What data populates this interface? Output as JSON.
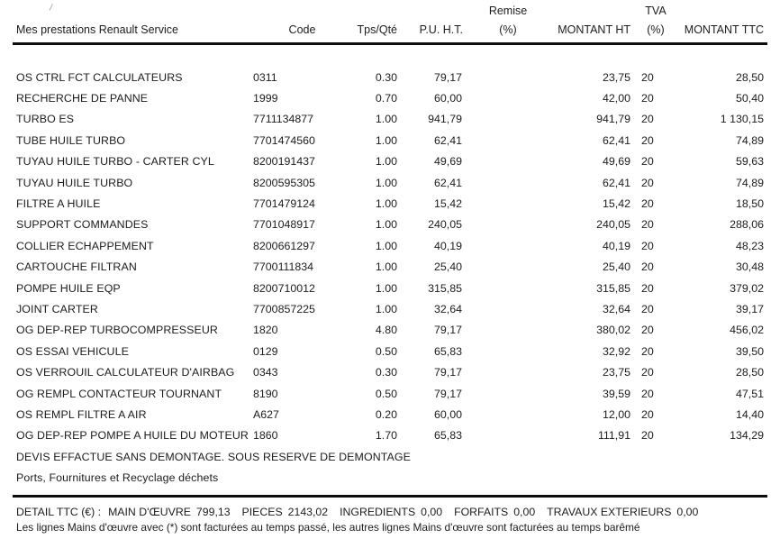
{
  "table": {
    "columns": [
      {
        "id": "prestations",
        "line1": "",
        "line2": "Mes prestations Renault Service"
      },
      {
        "id": "code",
        "line1": "",
        "line2": "Code"
      },
      {
        "id": "tps_qte",
        "line1": "",
        "line2": "Tps/Qté"
      },
      {
        "id": "pu_ht",
        "line1": "",
        "line2": "P.U. H.T."
      },
      {
        "id": "remise",
        "line1": "Remise",
        "line2": "(%)"
      },
      {
        "id": "montant_ht",
        "line1": "",
        "line2": "MONTANT HT"
      },
      {
        "id": "tva",
        "line1": "TVA",
        "line2": "(%)"
      },
      {
        "id": "montant_ttc",
        "line1": "",
        "line2": "MONTANT TTC"
      }
    ],
    "rows": [
      {
        "label": "OS CTRL FCT CALCULATEURS",
        "code": "0311",
        "qty": "0.30",
        "pu_ht": "79,17",
        "remise": "",
        "montant_ht": "23,75",
        "tva": "20",
        "montant_ttc": "28,50"
      },
      {
        "label": "RECHERCHE DE PANNE",
        "code": "1999",
        "qty": "0.70",
        "pu_ht": "60,00",
        "remise": "",
        "montant_ht": "42,00",
        "tva": "20",
        "montant_ttc": "50,40"
      },
      {
        "label": "TURBO ES",
        "code": "7711134877",
        "qty": "1.00",
        "pu_ht": "941,79",
        "remise": "",
        "montant_ht": "941,79",
        "tva": "20",
        "montant_ttc": "1 130,15"
      },
      {
        "label": "TUBE HUILE TURBO",
        "code": "7701474560",
        "qty": "1.00",
        "pu_ht": "62,41",
        "remise": "",
        "montant_ht": "62,41",
        "tva": "20",
        "montant_ttc": "74,89"
      },
      {
        "label": "TUYAU HUILE TURBO - CARTER CYL",
        "code": "8200191437",
        "qty": "1.00",
        "pu_ht": "49,69",
        "remise": "",
        "montant_ht": "49,69",
        "tva": "20",
        "montant_ttc": "59,63"
      },
      {
        "label": "TUYAU HUILE TURBO",
        "code": "8200595305",
        "qty": "1.00",
        "pu_ht": "62,41",
        "remise": "",
        "montant_ht": "62,41",
        "tva": "20",
        "montant_ttc": "74,89"
      },
      {
        "label": "FILTRE A HUILE",
        "code": "7701479124",
        "qty": "1.00",
        "pu_ht": "15,42",
        "remise": "",
        "montant_ht": "15,42",
        "tva": "20",
        "montant_ttc": "18,50"
      },
      {
        "label": "SUPPORT COMMANDES",
        "code": "7701048917",
        "qty": "1.00",
        "pu_ht": "240,05",
        "remise": "",
        "montant_ht": "240,05",
        "tva": "20",
        "montant_ttc": "288,06"
      },
      {
        "label": "COLLIER ECHAPPEMENT",
        "code": "8200661297",
        "qty": "1.00",
        "pu_ht": "40,19",
        "remise": "",
        "montant_ht": "40,19",
        "tva": "20",
        "montant_ttc": "48,23"
      },
      {
        "label": "CARTOUCHE FILTRAN",
        "code": "7700111834",
        "qty": "1.00",
        "pu_ht": "25,40",
        "remise": "",
        "montant_ht": "25,40",
        "tva": "20",
        "montant_ttc": "30,48"
      },
      {
        "label": "POMPE HUILE EQP",
        "code": "8200710012",
        "qty": "1.00",
        "pu_ht": "315,85",
        "remise": "",
        "montant_ht": "315,85",
        "tva": "20",
        "montant_ttc": "379,02"
      },
      {
        "label": "JOINT CARTER",
        "code": "7700857225",
        "qty": "1.00",
        "pu_ht": "32,64",
        "remise": "",
        "montant_ht": "32,64",
        "tva": "20",
        "montant_ttc": "39,17"
      },
      {
        "label": "OG DEP-REP TURBOCOMPRESSEUR",
        "code": "1820",
        "qty": "4.80",
        "pu_ht": "79,17",
        "remise": "",
        "montant_ht": "380,02",
        "tva": "20",
        "montant_ttc": "456,02"
      },
      {
        "label": "OS ESSAI VEHICULE",
        "code": "0129",
        "qty": "0.50",
        "pu_ht": "65,83",
        "remise": "",
        "montant_ht": "32,92",
        "tva": "20",
        "montant_ttc": "39,50"
      },
      {
        "label": "OS VERROUIL CALCULATEUR D'AIRBAG",
        "code": "0343",
        "qty": "0.30",
        "pu_ht": "79,17",
        "remise": "",
        "montant_ht": "23,75",
        "tva": "20",
        "montant_ttc": "28,50"
      },
      {
        "label": "OG REMPL CONTACTEUR TOURNANT",
        "code": "8190",
        "qty": "0.50",
        "pu_ht": "79,17",
        "remise": "",
        "montant_ht": "39,59",
        "tva": "20",
        "montant_ttc": "47,51"
      },
      {
        "label": "OS REMPL FILTRE A AIR",
        "code": "A627",
        "qty": "0.20",
        "pu_ht": "60,00",
        "remise": "",
        "montant_ht": "12,00",
        "tva": "20",
        "montant_ttc": "14,40"
      },
      {
        "label": "OG DEP-REP POMPE A HUILE DU MOTEUR",
        "code": "1860",
        "qty": "1.70",
        "pu_ht": "65,83",
        "remise": "",
        "montant_ht": "111,91",
        "tva": "20",
        "montant_ttc": "134,29"
      }
    ],
    "note_rows": [
      "DEVIS EFFACTUE SANS DEMONTAGE. SOUS RESERVE DE DEMONTAGE",
      "Ports, Fournitures et Recyclage déchets"
    ]
  },
  "footer": {
    "detail_label": "DETAIL TTC (€) :",
    "detail_items": [
      {
        "name": "MAIN D'ŒUVRE",
        "value": "799,13"
      },
      {
        "name": "PIECES",
        "value": "2143,02"
      },
      {
        "name": "INGREDIENTS",
        "value": "0,00"
      },
      {
        "name": "FORFAITS",
        "value": "0,00"
      },
      {
        "name": "TRAVAUX EXTERIEURS",
        "value": "0,00"
      }
    ],
    "note": "Les lignes Mains d'œuvre avec (*) sont facturées au temps passé, les autres lignes Mains d'œuvre sont facturées au temps barêmé"
  },
  "colors": {
    "text": "#1c1c1c",
    "rule": "#0d0d0d",
    "background": "#ffffff"
  }
}
